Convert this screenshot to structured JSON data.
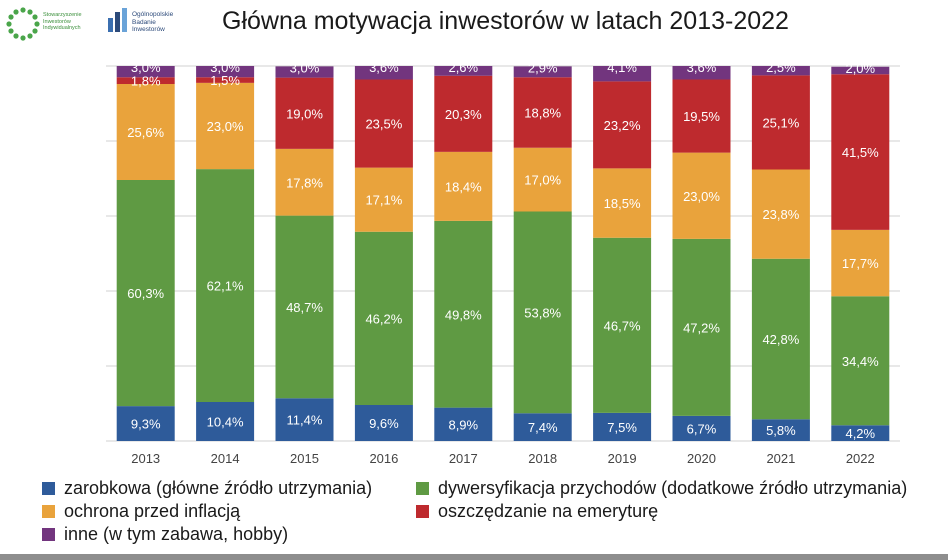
{
  "header": {
    "title": "Główna motywacja inwestorów w latach 2013-2022",
    "logo_sii_lines": [
      "Stowarzyszenie",
      "Inwestorów",
      "Indywidualnych"
    ],
    "logo_obi_lines": [
      "Ogólnopolskie",
      "Badanie",
      "Inwestorów"
    ]
  },
  "colors": {
    "zarobkowa": "#2e5b9a",
    "dywersyfikacja": "#5f9a43",
    "inflacja": "#e9a33c",
    "emerytura": "#be2a2e",
    "inne": "#72357e"
  },
  "chart_data": {
    "type": "bar",
    "stacked": true,
    "title": "Główna motywacja inwestorów w latach 2013-2022",
    "categories": [
      "2013",
      "2014",
      "2015",
      "2016",
      "2017",
      "2018",
      "2019",
      "2020",
      "2021",
      "2022"
    ],
    "ylim": [
      0,
      100
    ],
    "grid": true,
    "legend_position": "bottom",
    "series": [
      {
        "name": "zarobkowa (główne źródło utrzymania)",
        "key": "zarobkowa",
        "values": [
          9.3,
          10.4,
          11.4,
          9.6,
          8.9,
          7.4,
          7.5,
          6.7,
          5.8,
          4.2
        ],
        "labels": [
          "9,3%",
          "10,4%",
          "11,4%",
          "9,6%",
          "8,9%",
          "7,4%",
          "7,5%",
          "6,7%",
          "5,8%",
          "4,2%"
        ]
      },
      {
        "name": "dywersyfikacja przychodów (dodatkowe źródło utrzymania)",
        "key": "dywersyfikacja",
        "values": [
          60.3,
          62.1,
          48.7,
          46.2,
          49.8,
          53.8,
          46.7,
          47.2,
          42.8,
          34.4
        ],
        "labels": [
          "60,3%",
          "62,1%",
          "48,7%",
          "46,2%",
          "49,8%",
          "53,8%",
          "46,7%",
          "47,2%",
          "42,8%",
          "34,4%"
        ]
      },
      {
        "name": "ochrona przed inflacją",
        "key": "inflacja",
        "values": [
          25.6,
          23.0,
          17.8,
          17.1,
          18.4,
          17.0,
          18.5,
          23.0,
          23.8,
          17.7
        ],
        "labels": [
          "25,6%",
          "23,0%",
          "17,8%",
          "17,1%",
          "18,4%",
          "17,0%",
          "18,5%",
          "23,0%",
          "23,8%",
          "17,7%"
        ]
      },
      {
        "name": "oszczędzanie na emeryturę",
        "key": "emerytura",
        "values": [
          1.8,
          1.5,
          19.0,
          23.5,
          20.3,
          18.8,
          23.2,
          19.5,
          25.1,
          41.5
        ],
        "labels": [
          "1,8%",
          "1,5%",
          "19,0%",
          "23,5%",
          "20,3%",
          "18,8%",
          "23,2%",
          "19,5%",
          "25,1%",
          "41,5%"
        ]
      },
      {
        "name": "inne (w tym zabawa, hobby)",
        "key": "inne",
        "values": [
          3.0,
          3.0,
          3.0,
          3.6,
          2.6,
          2.9,
          4.1,
          3.6,
          2.5,
          2.0
        ],
        "labels": [
          "3,0%",
          "3,0%",
          "3,0%",
          "3,6%",
          "2,6%",
          "2,9%",
          "4,1%",
          "3,6%",
          "2,5%",
          "2,0%"
        ]
      }
    ]
  },
  "legend": {
    "zarobkowa": "zarobkowa (główne źródło utrzymania)",
    "dywersyfikacja": "dywersyfikacja przychodów (dodatkowe źródło utrzymania)",
    "inflacja": "ochrona przed inflacją",
    "emerytura": "oszczędzanie na emeryturę",
    "inne": "inne (w tym zabawa, hobby)"
  }
}
